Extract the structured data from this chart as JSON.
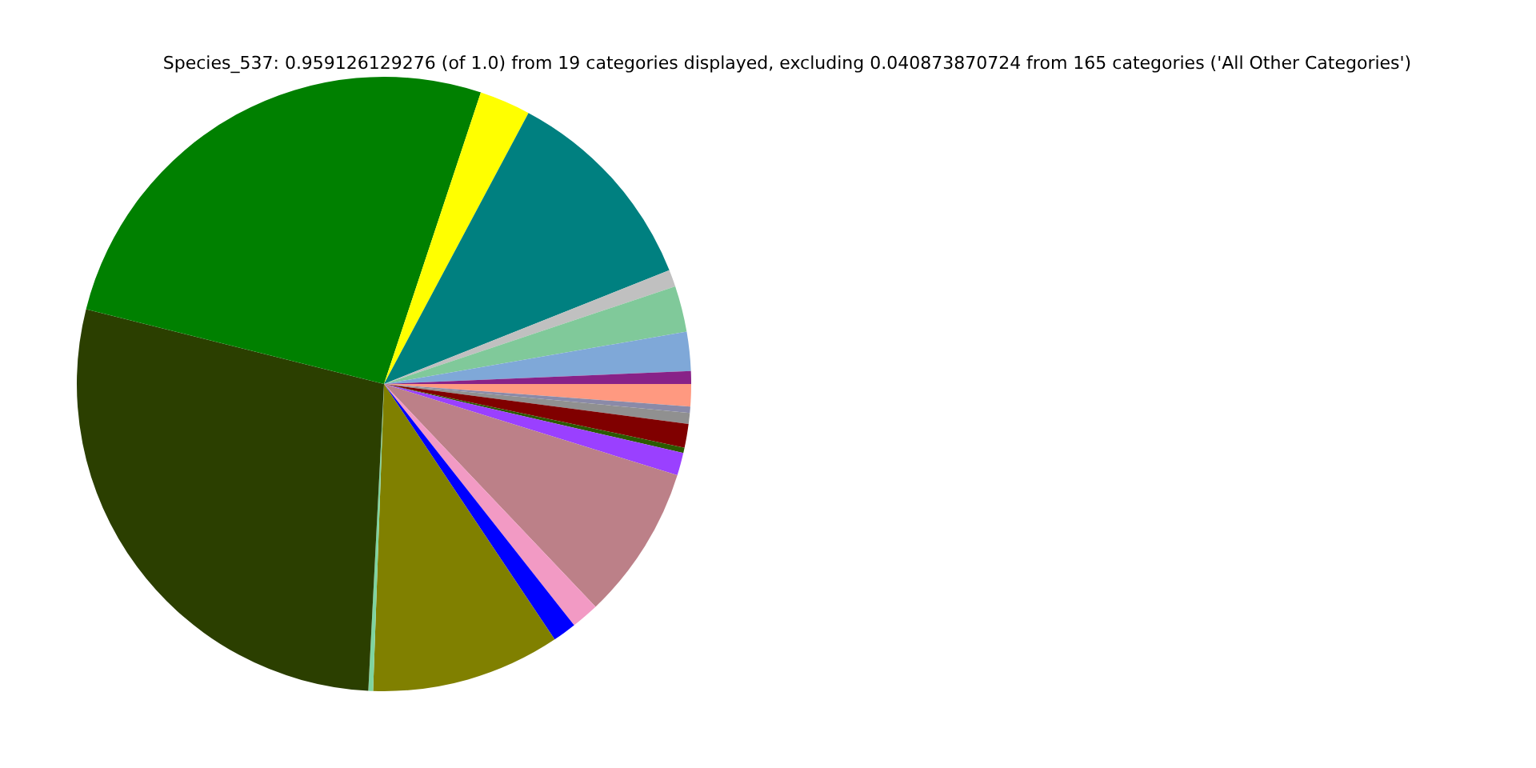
{
  "chart_data": {
    "type": "pie",
    "title": "Species_537: 0.959126129276 (of 1.0) from 19 categories displayed, excluding 0.040873870724 from 165 categories ('All Other Categories')",
    "categories": [
      null,
      null,
      null,
      null,
      null,
      null,
      null,
      null,
      null,
      null,
      null,
      null,
      null,
      null,
      null,
      null,
      null,
      null,
      null
    ],
    "values": [
      1.17,
      0.33,
      0.58,
      1.25,
      0.28,
      1.19,
      8.11,
      1.47,
      1.25,
      9.94,
      0.25,
      28.11,
      26.19,
      2.69,
      11.17,
      0.89,
      2.42,
      2.06,
      0.67
    ],
    "colors": [
      "#ff9980",
      "#8a8aa8",
      "#909090",
      "#800000",
      "#2b5a00",
      "#9a40ff",
      "#bc8088",
      "#f29ac4",
      "#0000ff",
      "#808000",
      "#7fd4a0",
      "#2b3f00",
      "#008000",
      "#ffff00",
      "#008080",
      "#c0c0c0",
      "#80c99a",
      "#7fa8d8",
      "#882288"
    ],
    "legend": false
  }
}
